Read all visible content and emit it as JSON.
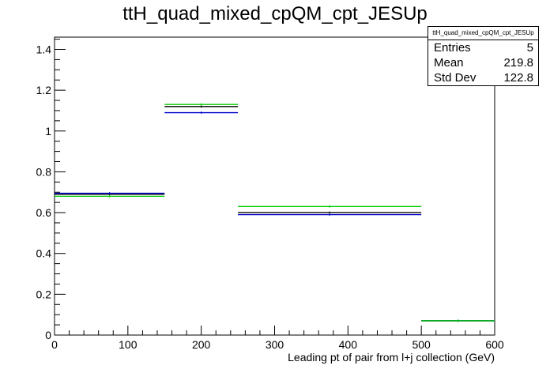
{
  "chart_data": {
    "type": "histogram",
    "title": "ttH_quad_mixed_cpQM_cpt_JESUp",
    "xlabel": "Leading pt of pair from l+j collection (GeV)",
    "ylabel": "",
    "xlim": [
      0,
      600
    ],
    "ylim": [
      0,
      1.46
    ],
    "x_ticks": [
      0,
      100,
      200,
      300,
      400,
      500,
      600
    ],
    "y_ticks": [
      0,
      0.2,
      0.4,
      0.6,
      0.8,
      1,
      1.2,
      1.4
    ],
    "bins": [
      0,
      150,
      250,
      500,
      600
    ],
    "series": [
      {
        "color": "#000000",
        "values": [
          0.69,
          1.12,
          0.6,
          0.07
        ]
      },
      {
        "color": "#0000cc",
        "values": [
          0.695,
          1.09,
          0.59,
          0.07
        ]
      },
      {
        "color": "#00cc00",
        "values": [
          0.68,
          1.13,
          0.63,
          0.07
        ]
      }
    ],
    "grid": false,
    "legend": "none"
  },
  "stats_box": {
    "title": "ttH_quad_mixed_cpQM_cpt_JESUp",
    "entries_label": "Entries",
    "entries_value": "5",
    "mean_label": "Mean",
    "mean_value": "219.8",
    "stddev_label": "Std Dev",
    "stddev_value": "122.8"
  }
}
